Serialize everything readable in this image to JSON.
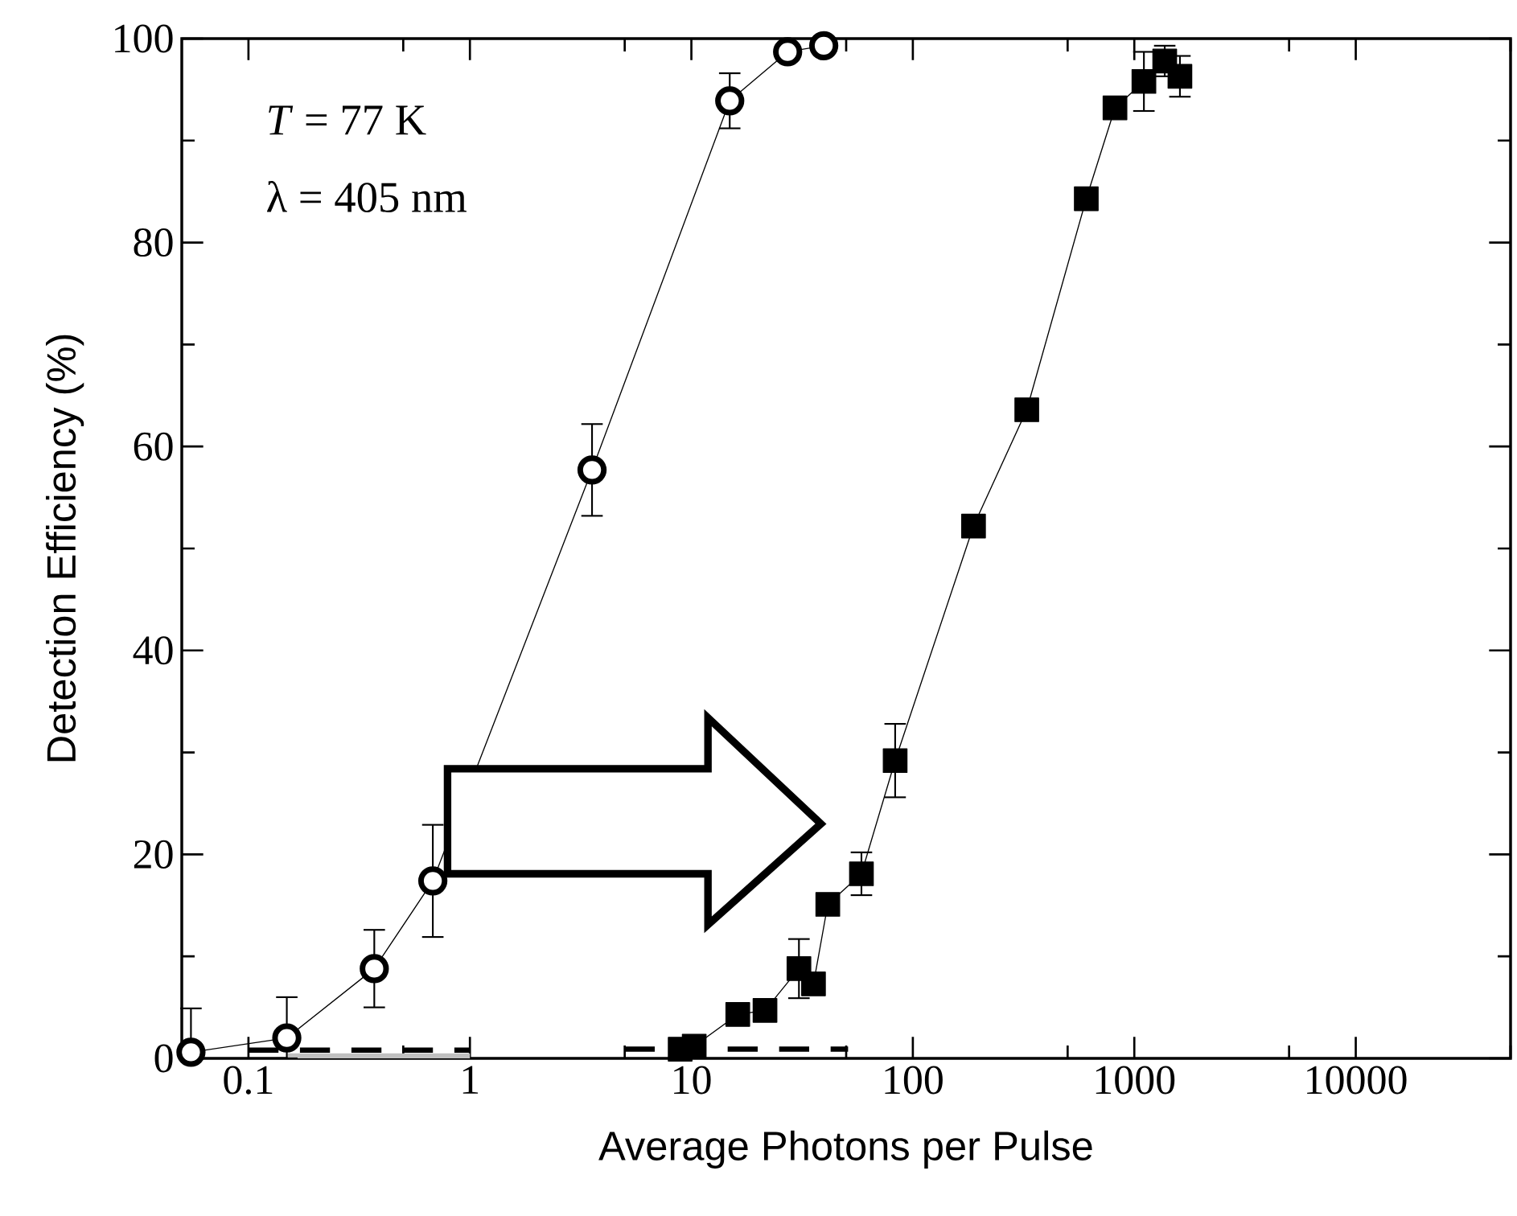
{
  "chart_data": {
    "type": "line",
    "xlabel": "Average Photons per Pulse",
    "ylabel": "Detection Efficiency (%)",
    "log": "x",
    "xlim": [
      0.05,
      50000
    ],
    "xticks": [
      0.1,
      1,
      10,
      100,
      1000,
      10000
    ],
    "ylim": [
      0,
      100
    ],
    "yticks": [
      0,
      20,
      40,
      60,
      80,
      100
    ],
    "annotations": [
      "*T* = 77 K",
      "λ = 405 nm"
    ],
    "series": [
      {
        "type": "area",
        "color": "#c0c0c0",
        "x": [
          0.15,
          1
        ],
        "values": [
          0.5,
          0.5
        ]
      },
      {
        "color": "#000000",
        "marker": "none",
        "line_style": "dashed",
        "x": [
          0.1,
          1
        ],
        "values": [
          0.8,
          0.8
        ]
      },
      {
        "color": "#000000",
        "marker": "none",
        "line_style": "dashed",
        "x": [
          5,
          51
        ],
        "values": [
          0.9,
          0.9
        ]
      },
      {
        "color": "#000000",
        "marker": "circle",
        "line_style": "solid",
        "x": [
          0.055,
          0.149,
          0.37,
          0.68,
          3.56,
          14.9,
          27.2,
          39.6
        ],
        "values": [
          0.6,
          2.0,
          8.8,
          17.4,
          57.7,
          93.9,
          98.7,
          99.3
        ],
        "errors": [
          [
            0,
            4.9
          ],
          [
            0,
            6
          ],
          3.8,
          5.5,
          4.5,
          2.7,
          null,
          null
        ]
      },
      {
        "color": "#000000",
        "marker": "square",
        "line_style": "solid",
        "x": [
          8.9,
          10.3,
          16.2,
          21.5,
          30.6,
          35.6,
          41.3,
          58.6,
          83.2,
          188,
          327,
          607,
          818,
          1105,
          1372,
          1607
        ],
        "values": [
          0.9,
          1.2,
          4.3,
          4.7,
          8.8,
          7.3,
          15.1,
          18.1,
          29.2,
          52.2,
          63.6,
          84.3,
          93.2,
          95.8,
          97.8,
          96.3
        ],
        "errors": [
          null,
          null,
          null,
          null,
          2.9,
          null,
          null,
          2.1,
          3.6,
          null,
          null,
          null,
          null,
          2.9,
          1.5,
          2
        ]
      }
    ]
  }
}
